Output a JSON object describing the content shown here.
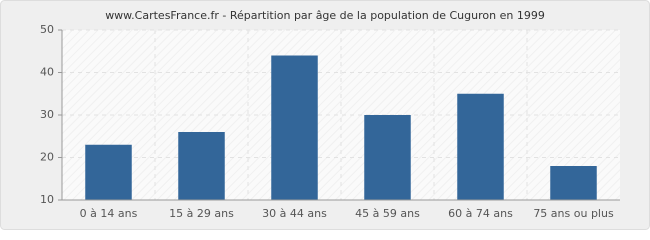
{
  "chart_data": {
    "type": "bar",
    "title": "www.CartesFrance.fr - Répartition par âge de la population de Cuguron en 1999",
    "categories": [
      "0 à 14 ans",
      "15 à 29 ans",
      "30 à 44 ans",
      "45 à 59 ans",
      "60 à 74 ans",
      "75 ans ou plus"
    ],
    "values": [
      23,
      26,
      44,
      30,
      35,
      18
    ],
    "color": "#336699",
    "ylim": [
      10,
      50
    ],
    "yticks": [
      10,
      20,
      30,
      40,
      50
    ],
    "grid": true
  }
}
